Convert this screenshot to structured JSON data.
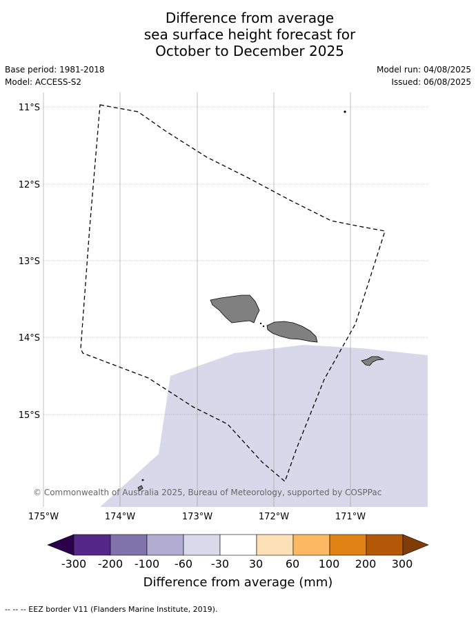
{
  "title": {
    "line1": "Difference from average",
    "line2": "sea surface height forecast for",
    "line3": "October to December 2025"
  },
  "meta": {
    "base_period": "Base period: 1981-2018",
    "model": "Model: ACCESS-S2",
    "model_run": "Model run: 04/08/2025",
    "issued": "Issued: 06/08/2025"
  },
  "map": {
    "lat_labels": [
      "11°S",
      "12°S",
      "13°S",
      "14°S",
      "15°S"
    ],
    "lon_labels": [
      "175°W",
      "174°W",
      "173°W",
      "172°W",
      "171°W"
    ],
    "copyright": "© Commonwealth of Australia 2025, Bureau of Meteorology, supported by COSPPac",
    "colors": {
      "land": "#808080",
      "anomaly_fill": "#d8d8ea",
      "grid": "#999999"
    }
  },
  "colorbar": {
    "title": "Difference from average (mm)",
    "labels": [
      "-300",
      "-200",
      "-100",
      "-60",
      "-30",
      "30",
      "60",
      "100",
      "200",
      "300"
    ],
    "colors": [
      "#2d004b",
      "#542788",
      "#8073ac",
      "#b2abd2",
      "#d8daeb",
      "#ffffff",
      "#fee0b6",
      "#fdb863",
      "#e08214",
      "#b35806",
      "#7f3b08"
    ]
  },
  "footnote": "--  --  -- EEZ border V11 (Flanders Marine Institute, 2019)."
}
